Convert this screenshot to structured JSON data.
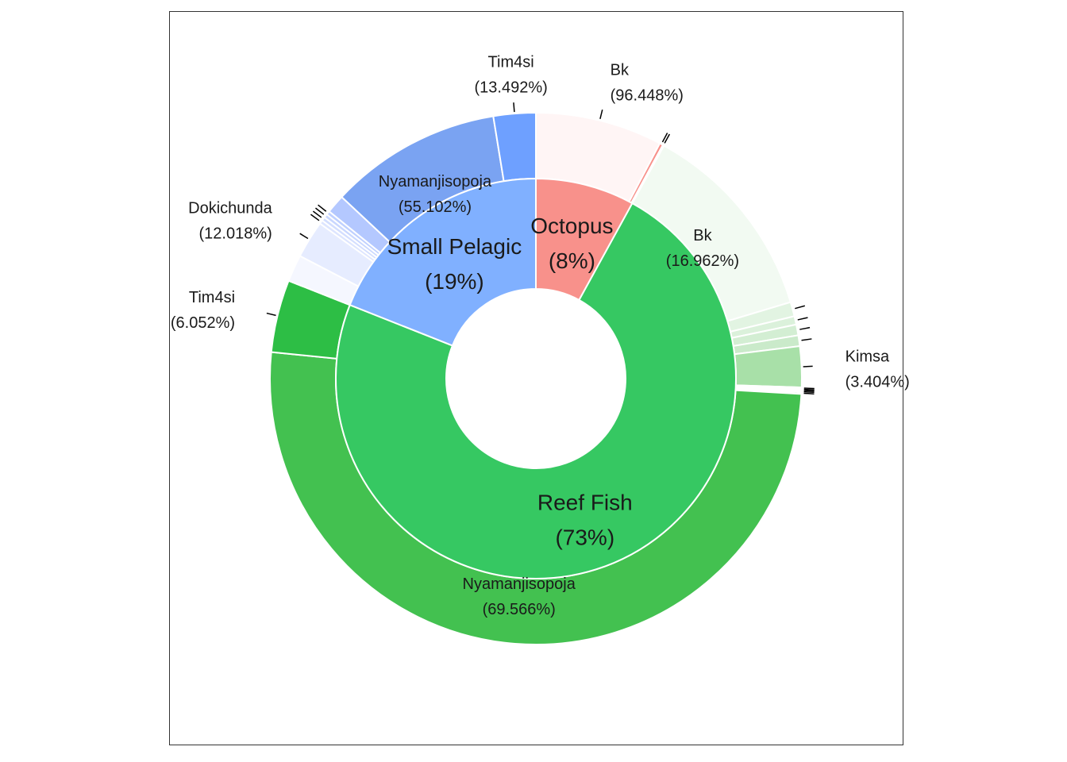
{
  "chart_data": {
    "type": "pie",
    "subtype": "sunburst-donut",
    "inner_ring": [
      {
        "name": "Octopus",
        "value": 8,
        "label_pct": "(8%)",
        "color": "#F8918B"
      },
      {
        "name": "Reef Fish",
        "value": 73,
        "label_pct": "(73%)",
        "color": "#36C862"
      },
      {
        "name": "Small Pelagic",
        "value": 19,
        "label_pct": "(19%)",
        "color": "#80B0FF"
      }
    ],
    "outer_ring": [
      {
        "parent": "Octopus",
        "name": "Bk",
        "value": 96.448,
        "pct": "(96.448%)",
        "color": "#FFF5F5",
        "labeled": true
      },
      {
        "parent": "Octopus",
        "name": "",
        "value": 2.6,
        "color": "#F8918B",
        "labeled": false
      },
      {
        "parent": "Octopus",
        "name": "",
        "value": 0.952,
        "color": "#FCE4E4",
        "labeled": false
      },
      {
        "parent": "Reef Fish",
        "name": "Bk",
        "value": 16.962,
        "pct": "(16.962%)",
        "color": "#F2FAF2",
        "labeled": true
      },
      {
        "parent": "Reef Fish",
        "name": "",
        "value": 1.2,
        "color": "#E2F4E2",
        "labeled": false
      },
      {
        "parent": "Reef Fish",
        "name": "",
        "value": 0.7,
        "color": "#DBF1DB",
        "labeled": false
      },
      {
        "parent": "Reef Fish",
        "name": "",
        "value": 0.9,
        "color": "#D3EED3",
        "labeled": false
      },
      {
        "parent": "Reef Fish",
        "name": "",
        "value": 0.9,
        "color": "#CAEACA",
        "labeled": false
      },
      {
        "parent": "Reef Fish",
        "name": "Kimsa",
        "value": 3.404,
        "pct": "(3.404%)",
        "color": "#A8E0A8",
        "labeled": true
      },
      {
        "parent": "Reef Fish",
        "name": "",
        "value": 0.1,
        "color": "#9CD89C",
        "labeled": false
      },
      {
        "parent": "Reef Fish",
        "name": "",
        "value": 0.1,
        "color": "#90D190",
        "labeled": false
      },
      {
        "parent": "Reef Fish",
        "name": "",
        "value": 0.1,
        "color": "#84CA84",
        "labeled": false
      },
      {
        "parent": "Reef Fish",
        "name": "",
        "value": 0.1,
        "color": "#78C478",
        "labeled": false
      },
      {
        "parent": "Reef Fish",
        "name": "",
        "value": 0.138,
        "color": "#6CBE6C",
        "labeled": false
      },
      {
        "parent": "Reef Fish",
        "name": "Nyamanjisopoja",
        "value": 69.566,
        "pct": "(69.566%)",
        "color": "#43C150",
        "labeled": true
      },
      {
        "parent": "Reef Fish",
        "name": "Tim4si",
        "value": 6.052,
        "pct": "(6.052%)",
        "color": "#2DBE45",
        "labeled": true
      },
      {
        "parent": "Small Pelagic",
        "name": "",
        "value": 8.6,
        "color": "#F5F7FF",
        "labeled": false
      },
      {
        "parent": "Small Pelagic",
        "name": "Dokichunda",
        "value": 12.018,
        "pct": "(12.018%)",
        "color": "#E6ECFF",
        "labeled": true
      },
      {
        "parent": "Small Pelagic",
        "name": "",
        "value": 1.2,
        "color": "#DDE5FF",
        "labeled": false
      },
      {
        "parent": "Small Pelagic",
        "name": "",
        "value": 1.2,
        "color": "#D3DEFF",
        "labeled": false
      },
      {
        "parent": "Small Pelagic",
        "name": "",
        "value": 1.2,
        "color": "#C9D7FF",
        "labeled": false
      },
      {
        "parent": "Small Pelagic",
        "name": "",
        "value": 1.2,
        "color": "#BFD0FF",
        "labeled": false
      },
      {
        "parent": "Small Pelagic",
        "name": "",
        "value": 6.008,
        "color": "#B4C8FF",
        "labeled": false
      },
      {
        "parent": "Small Pelagic",
        "name": "Nyamanjisopoja",
        "value": 55.102,
        "pct": "(55.102%)",
        "color": "#7AA3F2",
        "labeled": true
      },
      {
        "parent": "Small Pelagic",
        "name": "Tim4si",
        "value": 13.492,
        "pct": "(13.492%)",
        "color": "#6EA0FF",
        "labeled": true
      }
    ]
  }
}
